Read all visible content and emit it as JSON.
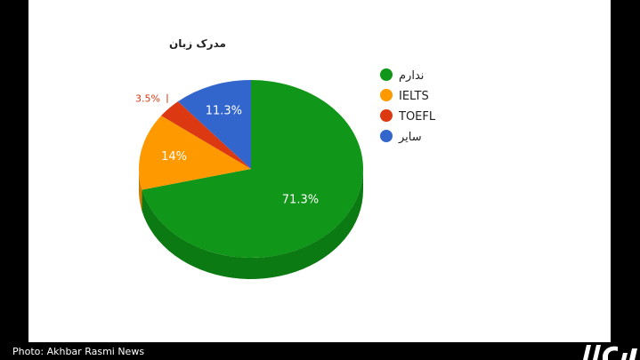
{
  "chart_data": {
    "type": "pie",
    "title": "مدرک زبان",
    "three_d": true,
    "legend_position": "right",
    "slices": [
      {
        "label": "ندارم",
        "value": 71.3,
        "display": "71.3%",
        "color": "#109618",
        "shade": "#0c7a13"
      },
      {
        "label": "IELTS",
        "value": 14,
        "display": "14%",
        "color": "#ff9900",
        "shade": "#cc7a00"
      },
      {
        "label": "TOEFL",
        "value": 3.5,
        "display": "3.5%",
        "color": "#dc3912",
        "shade": "#b02e0e"
      },
      {
        "label": "سایر",
        "value": 11.3,
        "display": "11.3%",
        "color": "#3366cc",
        "shade": "#2851a3"
      }
    ]
  },
  "credit": "Photo: Akhbar Rasmi News",
  "colors": {
    "background": "#ffffff",
    "frame": "#000000"
  }
}
